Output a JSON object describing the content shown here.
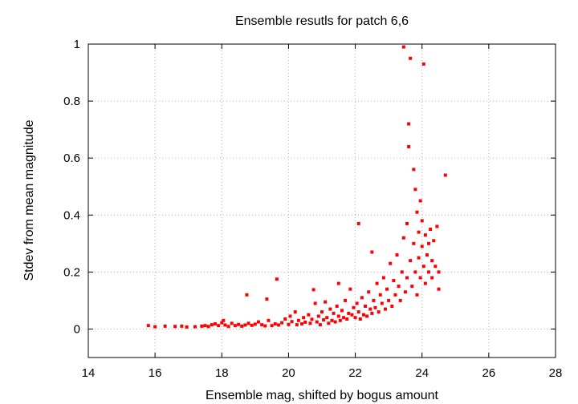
{
  "chart_data": {
    "type": "scatter",
    "title": "Ensemble resutls for patch 6,6",
    "xlabel": "Ensemble mag, shifted by bogus amount",
    "ylabel": "Stdev from mean magnitude",
    "xlim": [
      14,
      28
    ],
    "ylim": [
      -0.1,
      1.0
    ],
    "x_ticks": [
      14,
      16,
      18,
      20,
      22,
      24,
      26,
      28
    ],
    "y_ticks": [
      0,
      0.2,
      0.4,
      0.6,
      0.8,
      1
    ],
    "x_tick_labels": [
      "14",
      "16",
      "18",
      "20",
      "22",
      "24",
      "26",
      "28"
    ],
    "y_tick_labels": [
      "0",
      "0.2",
      "0.4",
      "0.6",
      "0.8",
      "1"
    ],
    "grid": true,
    "marker_color": "#ff0000",
    "series": [
      {
        "points": [
          [
            15.8,
            0.012
          ],
          [
            16.0,
            0.008
          ],
          [
            16.3,
            0.01
          ],
          [
            16.6,
            0.009
          ],
          [
            16.8,
            0.01
          ],
          [
            16.95,
            0.007
          ],
          [
            17.2,
            0.008
          ],
          [
            17.4,
            0.01
          ],
          [
            17.5,
            0.012
          ],
          [
            17.6,
            0.009
          ],
          [
            17.7,
            0.015
          ],
          [
            17.8,
            0.018
          ],
          [
            17.9,
            0.012
          ],
          [
            18.0,
            0.022
          ],
          [
            18.05,
            0.03
          ],
          [
            18.1,
            0.014
          ],
          [
            18.2,
            0.009
          ],
          [
            18.3,
            0.02
          ],
          [
            18.4,
            0.012
          ],
          [
            18.5,
            0.016
          ],
          [
            18.6,
            0.01
          ],
          [
            18.7,
            0.014
          ],
          [
            18.75,
            0.12
          ],
          [
            18.8,
            0.02
          ],
          [
            18.9,
            0.013
          ],
          [
            19.0,
            0.017
          ],
          [
            19.1,
            0.025
          ],
          [
            19.2,
            0.015
          ],
          [
            19.3,
            0.011
          ],
          [
            19.35,
            0.105
          ],
          [
            19.4,
            0.03
          ],
          [
            19.5,
            0.012
          ],
          [
            19.6,
            0.018
          ],
          [
            19.65,
            0.175
          ],
          [
            19.7,
            0.014
          ],
          [
            19.8,
            0.022
          ],
          [
            19.9,
            0.035
          ],
          [
            20.0,
            0.016
          ],
          [
            20.05,
            0.045
          ],
          [
            20.1,
            0.026
          ],
          [
            20.2,
            0.06
          ],
          [
            20.25,
            0.015
          ],
          [
            20.3,
            0.03
          ],
          [
            20.4,
            0.018
          ],
          [
            20.45,
            0.04
          ],
          [
            20.5,
            0.024
          ],
          [
            20.6,
            0.05
          ],
          [
            20.65,
            0.02
          ],
          [
            20.7,
            0.034
          ],
          [
            20.75,
            0.138
          ],
          [
            20.8,
            0.09
          ],
          [
            20.85,
            0.025
          ],
          [
            20.9,
            0.045
          ],
          [
            20.95,
            0.015
          ],
          [
            21.0,
            0.06
          ],
          [
            21.05,
            0.032
          ],
          [
            21.1,
            0.095
          ],
          [
            21.15,
            0.04
          ],
          [
            21.2,
            0.02
          ],
          [
            21.25,
            0.07
          ],
          [
            21.3,
            0.03
          ],
          [
            21.35,
            0.055
          ],
          [
            21.4,
            0.025
          ],
          [
            21.45,
            0.08
          ],
          [
            21.5,
            0.16
          ],
          [
            21.5,
            0.045
          ],
          [
            21.55,
            0.03
          ],
          [
            21.6,
            0.065
          ],
          [
            21.65,
            0.04
          ],
          [
            21.7,
            0.1
          ],
          [
            21.75,
            0.035
          ],
          [
            21.8,
            0.055
          ],
          [
            21.85,
            0.14
          ],
          [
            21.9,
            0.05
          ],
          [
            21.95,
            0.075
          ],
          [
            22.0,
            0.04
          ],
          [
            22.05,
            0.09
          ],
          [
            22.1,
            0.37
          ],
          [
            22.1,
            0.06
          ],
          [
            22.15,
            0.035
          ],
          [
            22.2,
            0.11
          ],
          [
            22.25,
            0.05
          ],
          [
            22.3,
            0.08
          ],
          [
            22.35,
            0.045
          ],
          [
            22.4,
            0.13
          ],
          [
            22.45,
            0.07
          ],
          [
            22.5,
            0.27
          ],
          [
            22.5,
            0.055
          ],
          [
            22.55,
            0.1
          ],
          [
            22.6,
            0.075
          ],
          [
            22.65,
            0.16
          ],
          [
            22.7,
            0.06
          ],
          [
            22.75,
            0.12
          ],
          [
            22.8,
            0.09
          ],
          [
            22.85,
            0.18
          ],
          [
            22.9,
            0.07
          ],
          [
            22.95,
            0.14
          ],
          [
            23.0,
            0.1
          ],
          [
            23.05,
            0.23
          ],
          [
            23.1,
            0.08
          ],
          [
            23.15,
            0.17
          ],
          [
            23.2,
            0.12
          ],
          [
            23.25,
            0.26
          ],
          [
            23.3,
            0.15
          ],
          [
            23.35,
            0.1
          ],
          [
            23.4,
            0.2
          ],
          [
            23.45,
            0.32
          ],
          [
            23.45,
            0.99
          ],
          [
            23.5,
            0.13
          ],
          [
            23.55,
            0.37
          ],
          [
            23.55,
            0.18
          ],
          [
            23.6,
            0.72
          ],
          [
            23.6,
            0.64
          ],
          [
            23.65,
            0.24
          ],
          [
            23.65,
            0.95
          ],
          [
            23.7,
            0.15
          ],
          [
            23.75,
            0.3
          ],
          [
            23.75,
            0.56
          ],
          [
            23.8,
            0.2
          ],
          [
            23.8,
            0.49
          ],
          [
            23.85,
            0.41
          ],
          [
            23.85,
            0.12
          ],
          [
            23.9,
            0.34
          ],
          [
            23.9,
            0.25
          ],
          [
            23.95,
            0.45
          ],
          [
            23.95,
            0.18
          ],
          [
            24.0,
            0.38
          ],
          [
            24.0,
            0.29
          ],
          [
            24.05,
            0.22
          ],
          [
            24.05,
            0.93
          ],
          [
            24.1,
            0.33
          ],
          [
            24.1,
            0.16
          ],
          [
            24.15,
            0.26
          ],
          [
            24.2,
            0.3
          ],
          [
            24.2,
            0.2
          ],
          [
            24.25,
            0.35
          ],
          [
            24.3,
            0.24
          ],
          [
            24.3,
            0.18
          ],
          [
            24.35,
            0.31
          ],
          [
            24.4,
            0.22
          ],
          [
            24.45,
            0.36
          ],
          [
            24.5,
            0.2
          ],
          [
            24.5,
            0.14
          ],
          [
            24.7,
            0.54
          ]
        ]
      }
    ]
  }
}
